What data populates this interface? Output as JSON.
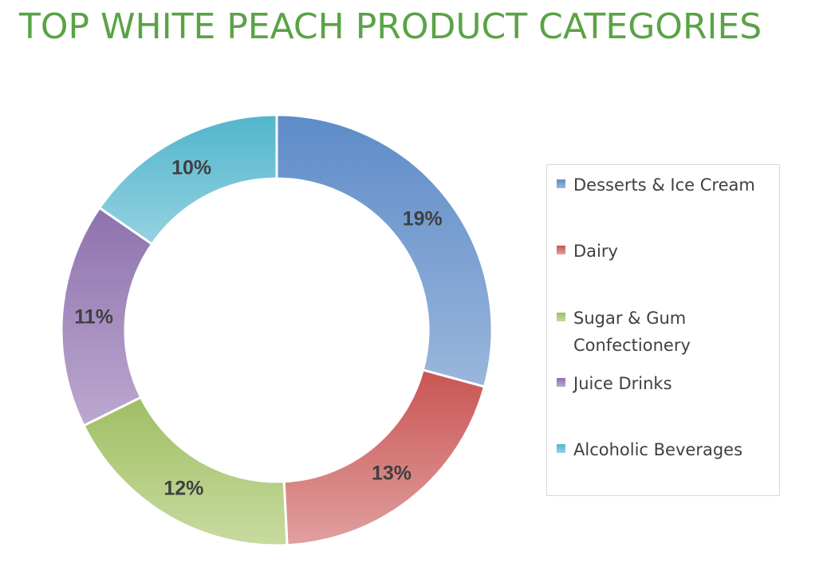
{
  "chart_data": {
    "type": "pie",
    "title": "TOP WHITE PEACH PRODUCT CATEGORIES",
    "donut": true,
    "legend_position": "right",
    "categories": [
      "Desserts & Ice Cream",
      "Dairy",
      "Sugar & Gum Confectionery",
      "Juice Drinks",
      "Alcoholic Beverages"
    ],
    "values": [
      19,
      13,
      12,
      11,
      10
    ],
    "labels": [
      "19%",
      "13%",
      "12%",
      "11%",
      "10%"
    ],
    "colors": [
      "#5d8cc8",
      "#c95553",
      "#9fbe63",
      "#8e72ad",
      "#52b5cc"
    ],
    "colors_light": [
      "#9ab6dc",
      "#e0a09f",
      "#c8dba0",
      "#bba8cf",
      "#95d2e1"
    ]
  }
}
